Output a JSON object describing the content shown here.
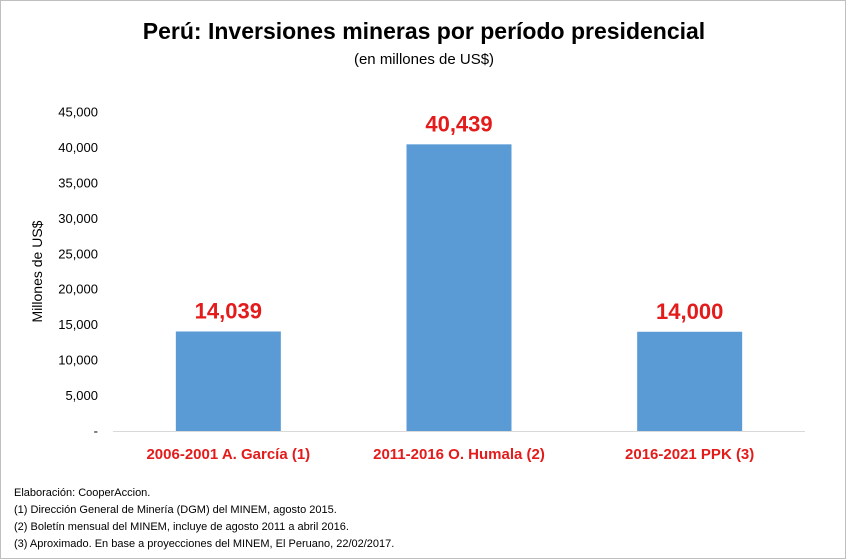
{
  "chart_data": {
    "type": "bar",
    "title": "Perú: Inversiones mineras por período presidencial",
    "subtitle": "(en millones de US$)",
    "xlabel": "",
    "ylabel": "Millones de US$",
    "categories": [
      "2006-2001 A. García (1)",
      "2011-2016 O. Humala (2)",
      "2016-2021 PPK (3)"
    ],
    "values": [
      14039,
      40439,
      14000
    ],
    "data_labels": [
      "14,039",
      "40,439",
      "14,000"
    ],
    "ylim": [
      0,
      45000
    ],
    "yticks": [
      {
        "value": 0,
        "label": "-"
      },
      {
        "value": 5000,
        "label": "5,000"
      },
      {
        "value": 10000,
        "label": "10,000"
      },
      {
        "value": 15000,
        "label": "15,000"
      },
      {
        "value": 20000,
        "label": "20,000"
      },
      {
        "value": 25000,
        "label": "25,000"
      },
      {
        "value": 30000,
        "label": "30,000"
      },
      {
        "value": 35000,
        "label": "35,000"
      },
      {
        "value": 40000,
        "label": "40,000"
      },
      {
        "value": 45000,
        "label": "45,000"
      }
    ],
    "grid": false,
    "legend": "none",
    "bar_color": "#5b9bd5",
    "label_color": "#e31b1b"
  },
  "notes": [
    "Elaboración: CooperAccion.",
    "(1) Dirección General de Minería (DGM)  del MINEM,  agosto 2015.",
    "(2) Boletín mensual del MINEM,  incluye de agosto 2011 a abril 2016.",
    "(3) Aproximado. En base a proyecciones del MINEM,  El Peruano, 22/02/2017."
  ]
}
